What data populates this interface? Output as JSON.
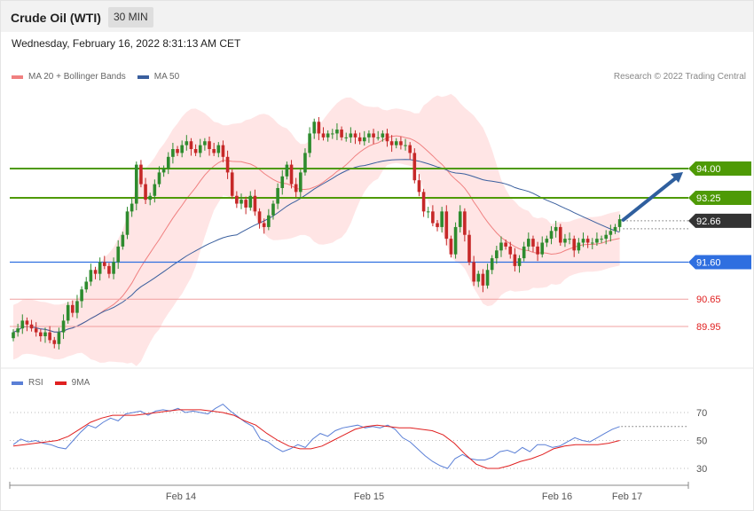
{
  "header": {
    "title": "Crude Oil (WTI)",
    "timeframe": "30 MIN",
    "datetime": "Wednesday, February 16, 2022 8:31:13 AM CET"
  },
  "legend_main": {
    "ma20": {
      "label": "MA 20 + Bollinger Bands",
      "color": "#f08080"
    },
    "ma50": {
      "label": "MA 50",
      "color": "#3a5f9e"
    },
    "credit": "Research © 2022 Trading Central"
  },
  "legend_rsi": {
    "rsi": {
      "label": "RSI",
      "color": "#5a7fd6"
    },
    "ma9": {
      "label": "9MA",
      "color": "#e02020"
    }
  },
  "levels": {
    "r2": {
      "label": "94.00",
      "value": 94.0,
      "color": "#4e9a06"
    },
    "r1": {
      "label": "93.25",
      "value": 93.25,
      "color": "#4e9a06"
    },
    "last": {
      "label": "92.66",
      "value": 92.66,
      "color": "#333333"
    },
    "pivot": {
      "label": "91.60",
      "value": 91.6,
      "color": "#2f6fe0"
    },
    "s1": {
      "label": "90.65",
      "value": 90.65,
      "color": "#e02020"
    },
    "s2": {
      "label": "89.95",
      "value": 89.95,
      "color": "#e02020"
    }
  },
  "x_axis": {
    "labels": [
      "Feb 14",
      "Feb 15",
      "Feb 16",
      "Feb 17"
    ]
  },
  "rsi_axis": {
    "labels": [
      "70",
      "50",
      "30"
    ]
  },
  "chart_data": [
    {
      "type": "candlestick",
      "ylim": [
        89.0,
        96.0
      ],
      "bar_interval": "30 MIN",
      "closes": [
        89.8,
        89.9,
        90.1,
        90.0,
        89.9,
        89.8,
        89.7,
        89.8,
        89.6,
        89.5,
        89.8,
        90.1,
        90.5,
        90.3,
        90.6,
        90.9,
        91.1,
        91.4,
        91.3,
        91.6,
        91.5,
        91.3,
        91.6,
        92.0,
        92.3,
        92.9,
        93.1,
        94.1,
        93.6,
        93.2,
        93.3,
        93.6,
        93.9,
        94.0,
        94.3,
        94.5,
        94.4,
        94.6,
        94.7,
        94.5,
        94.4,
        94.6,
        94.7,
        94.5,
        94.4,
        94.6,
        94.3,
        93.9,
        93.3,
        93.1,
        93.2,
        93.0,
        93.3,
        92.9,
        92.6,
        92.5,
        92.8,
        93.1,
        93.5,
        93.8,
        94.1,
        93.6,
        93.4,
        93.9,
        94.4,
        94.9,
        95.2,
        94.9,
        94.8,
        94.9,
        94.9,
        95.0,
        94.8,
        94.8,
        94.9,
        94.8,
        94.7,
        94.8,
        94.9,
        94.8,
        94.8,
        94.9,
        94.7,
        94.6,
        94.7,
        94.6,
        94.6,
        94.4,
        93.7,
        93.4,
        92.9,
        92.9,
        92.6,
        92.5,
        92.9,
        92.2,
        91.8,
        92.5,
        92.9,
        92.3,
        91.6,
        91.1,
        91.3,
        91.0,
        91.4,
        91.7,
        91.9,
        92.1,
        92.0,
        91.8,
        91.5,
        91.7,
        92.0,
        92.2,
        92.0,
        91.8,
        92.1,
        92.2,
        92.4,
        92.5,
        92.1,
        92.2,
        92.2,
        91.9,
        92.1,
        92.2,
        92.1,
        92.1,
        92.2,
        92.2,
        92.3,
        92.4,
        92.5,
        92.7
      ],
      "levels": [
        94.0,
        93.25,
        92.66,
        91.6,
        90.65,
        89.95
      ]
    },
    {
      "type": "line",
      "title": "RSI",
      "ylim": [
        20,
        80
      ],
      "reference_lines": [
        70,
        50,
        30
      ],
      "series": [
        {
          "name": "RSI",
          "values": [
            47,
            51,
            49,
            50,
            48,
            47,
            45,
            44,
            50,
            56,
            61,
            59,
            63,
            66,
            64,
            69,
            70,
            71,
            68,
            71,
            72,
            71,
            73,
            70,
            71,
            70,
            69,
            73,
            76,
            71,
            67,
            63,
            60,
            51,
            49,
            45,
            42,
            44,
            47,
            45,
            51,
            55,
            53,
            57,
            59,
            60,
            61,
            59,
            60,
            59,
            61,
            58,
            52,
            49,
            44,
            39,
            35,
            32,
            30,
            37,
            40,
            37,
            36,
            36,
            38,
            42,
            43,
            41,
            45,
            42,
            47,
            47,
            45,
            46,
            49,
            52,
            50,
            49,
            52,
            55,
            58,
            60
          ]
        },
        {
          "name": "9MA",
          "values": [
            46,
            47,
            48,
            49,
            50,
            53,
            58,
            63,
            66,
            68,
            68,
            68,
            69,
            70,
            71,
            72,
            72,
            72,
            71,
            70,
            68,
            64,
            61,
            55,
            50,
            46,
            44,
            44,
            46,
            50,
            54,
            58,
            60,
            61,
            60,
            59,
            59,
            58,
            57,
            54,
            48,
            40,
            33,
            30,
            30,
            32,
            35,
            37,
            40,
            44,
            46,
            47,
            47,
            47,
            48,
            50
          ]
        }
      ]
    }
  ]
}
